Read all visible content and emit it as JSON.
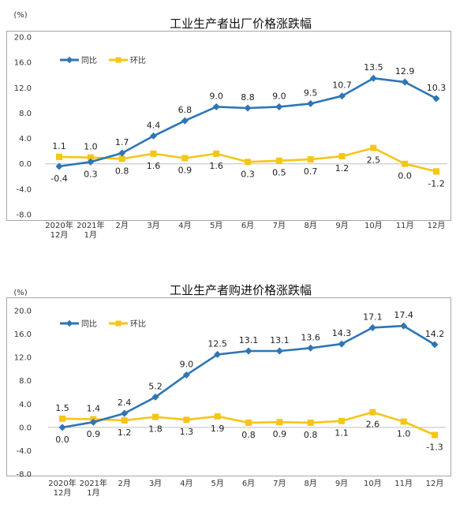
{
  "chart_data": [
    {
      "type": "line",
      "title": "工业生产者出厂价格涨跌幅",
      "unit": "(%)",
      "categories": [
        [
          "2020年",
          "12月"
        ],
        [
          "2021年",
          "1月"
        ],
        [
          "2月"
        ],
        [
          "3月"
        ],
        [
          "4月"
        ],
        [
          "5月"
        ],
        [
          "6月"
        ],
        [
          "7月"
        ],
        [
          "8月"
        ],
        [
          "9月"
        ],
        [
          "10月"
        ],
        [
          "11月"
        ],
        [
          "12月"
        ]
      ],
      "y_ticks": [
        "20.0",
        "16.0",
        "12.0",
        "8.0",
        "4.0",
        "0.0",
        "-4.0",
        "-8.0"
      ],
      "ylim": [
        -8,
        20
      ],
      "legend_position": "top-left",
      "grid": false,
      "series": [
        {
          "name": "同比",
          "color": "#2e75b6",
          "values": [
            -0.4,
            0.3,
            1.7,
            4.4,
            6.8,
            9.0,
            8.8,
            9.0,
            9.5,
            10.7,
            13.5,
            12.9,
            10.3
          ],
          "labels": [
            "-0.4",
            "0.3",
            "1.7",
            "4.4",
            "6.8",
            "9.0",
            "8.8",
            "9.0",
            "9.5",
            "10.7",
            "13.5",
            "12.9",
            "10.3"
          ]
        },
        {
          "name": "环比",
          "color": "#f5c518",
          "values": [
            1.1,
            1.0,
            0.8,
            1.6,
            0.9,
            1.6,
            0.3,
            0.5,
            0.7,
            1.2,
            2.5,
            0.0,
            -1.2
          ],
          "labels": [
            "1.1",
            "1.0",
            "0.8",
            "1.6",
            "0.9",
            "1.6",
            "0.3",
            "0.5",
            "0.7",
            "1.2",
            "2.5",
            "0.0",
            "-1.2"
          ]
        }
      ]
    },
    {
      "type": "line",
      "title": "工业生产者购进价格涨跌幅",
      "unit": "(%)",
      "categories": [
        [
          "2020年",
          "12月"
        ],
        [
          "2021年",
          "1月"
        ],
        [
          "2月"
        ],
        [
          "3月"
        ],
        [
          "4月"
        ],
        [
          "5月"
        ],
        [
          "6月"
        ],
        [
          "7月"
        ],
        [
          "8月"
        ],
        [
          "9月"
        ],
        [
          "10月"
        ],
        [
          "11月"
        ],
        [
          "12月"
        ]
      ],
      "y_ticks": [
        "20.0",
        "16.0",
        "12.0",
        "8.0",
        "4.0",
        "0.0",
        "-4.0",
        "-8.0"
      ],
      "ylim": [
        -8,
        20
      ],
      "legend_position": "top-left",
      "grid": false,
      "series": [
        {
          "name": "同比",
          "color": "#2e75b6",
          "values": [
            0.0,
            0.9,
            2.4,
            5.2,
            9.0,
            12.5,
            13.1,
            13.1,
            13.6,
            14.3,
            17.1,
            17.4,
            14.2
          ],
          "labels": [
            "0.0",
            "0.9",
            "2.4",
            "5.2",
            "9.0",
            "12.5",
            "13.1",
            "13.1",
            "13.6",
            "14.3",
            "17.1",
            "17.4",
            "14.2"
          ]
        },
        {
          "name": "环比",
          "color": "#f5c518",
          "values": [
            1.5,
            1.4,
            1.2,
            1.8,
            1.3,
            1.9,
            0.8,
            0.9,
            0.8,
            1.1,
            2.6,
            1.0,
            -1.3
          ],
          "labels": [
            "1.5",
            "1.4",
            "1.2",
            "1.8",
            "1.3",
            "1.9",
            "0.8",
            "0.9",
            "0.8",
            "1.1",
            "2.6",
            "1.0",
            "-1.3"
          ]
        }
      ]
    }
  ]
}
